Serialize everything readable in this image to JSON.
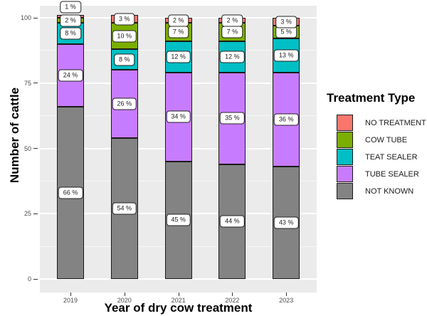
{
  "chart_data": {
    "type": "bar",
    "stacked": true,
    "xlabel": "Year of dry cow treatment",
    "ylabel": "Number of cattle",
    "categories": [
      "2019",
      "2020",
      "2021",
      "2022",
      "2023"
    ],
    "series": [
      {
        "name": "NOT KNOWN",
        "color": "#838383",
        "values": [
          66,
          54,
          45,
          44,
          43
        ]
      },
      {
        "name": "TUBE SEALER",
        "color": "#C77CFF",
        "values": [
          24,
          26,
          34,
          35,
          36
        ]
      },
      {
        "name": "TEAT SEALER",
        "color": "#00BFC4",
        "values": [
          8,
          8,
          12,
          12,
          13
        ]
      },
      {
        "name": "COW TUBE",
        "color": "#7CAE00",
        "values": [
          2,
          10,
          7,
          7,
          5
        ]
      },
      {
        "name": "NO TREATMENT",
        "color": "#F8766D",
        "values": [
          1,
          3,
          2,
          2,
          3
        ]
      }
    ],
    "label_format": "{v} %",
    "label_overrides": [
      {
        "category": "2019",
        "series": "NO TREATMENT",
        "position": "above_bar"
      }
    ],
    "y_ticks": [
      0,
      25,
      50,
      75,
      100
    ],
    "y_minor_ticks": [
      12.5,
      37.5,
      62.5,
      87.5
    ],
    "ylim": [
      0,
      101
    ],
    "grid": true,
    "panel_color": "#EBEBEB",
    "gridline_color": "#FFFFFF",
    "legend": {
      "title": "Treatment Type",
      "position": "right",
      "entries": [
        "NO TREATMENT",
        "COW TUBE",
        "TEAT SEALER",
        "TUBE SEALER",
        "NOT KNOWN"
      ]
    }
  }
}
